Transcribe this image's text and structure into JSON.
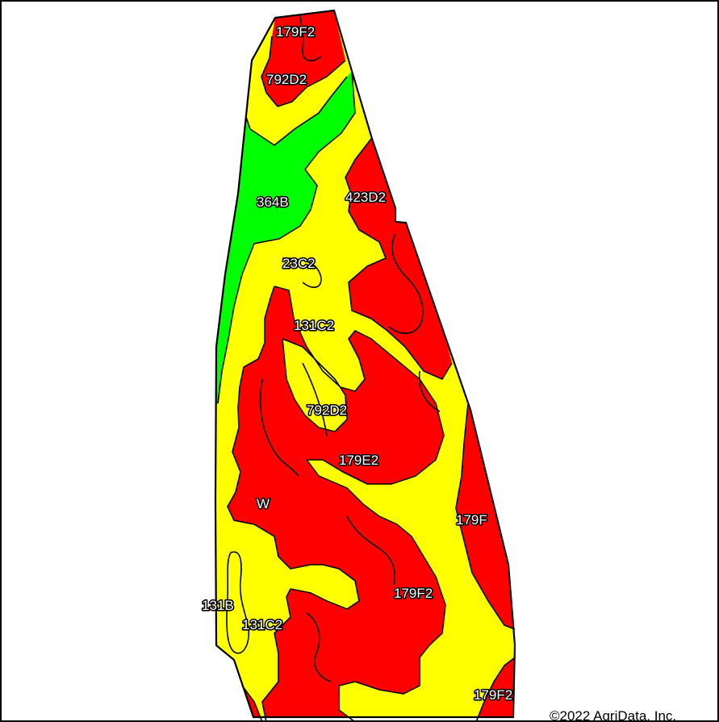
{
  "map": {
    "colors": {
      "green": "#00ff00",
      "yellow": "#ffff00",
      "red": "#ff0000",
      "outline": "#000000",
      "background": "#ffffff"
    },
    "soil_labels": [
      "179F2",
      "792D2",
      "364B",
      "423D2",
      "23C2",
      "131C2",
      "792D2",
      "179E2",
      "W",
      "179F",
      "131B",
      "179F2",
      "131C2",
      "179F2"
    ],
    "copyright": "©2022 AgriData, Inc."
  }
}
